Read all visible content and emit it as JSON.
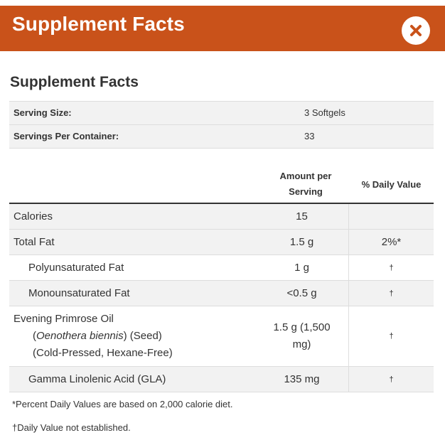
{
  "header": {
    "title": "Supplement Facts"
  },
  "section_title": "Supplement Facts",
  "serving": [
    {
      "label": "Serving Size:",
      "value": "3 Softgels"
    },
    {
      "label": "Servings Per Container:",
      "value": "33"
    }
  ],
  "columns": {
    "amount_line1": "Amount per",
    "amount_line2": "Serving",
    "daily_value": "% Daily Value"
  },
  "rows": [
    {
      "name": "Calories",
      "amount": "15",
      "dv": ""
    },
    {
      "name": "Total Fat",
      "amount": "1.5 g",
      "dv": "2%*"
    },
    {
      "name": "Polyunsaturated Fat",
      "amount": "1 g",
      "dv": "†"
    },
    {
      "name": "Monounsaturated Fat",
      "amount": "<0.5 g",
      "dv": "†"
    },
    {
      "name": "Evening Primrose Oil",
      "latin": "Oenothera biennis",
      "part": ") (Seed)",
      "open_paren": "(",
      "process": "(Cold-Pressed, Hexane-Free)",
      "amount_line1": "1.5 g (1,500",
      "amount_line2": "mg)",
      "dv": "†"
    },
    {
      "name": "Gamma Linolenic Acid (GLA)",
      "amount": "135 mg",
      "dv": "†"
    }
  ],
  "footnotes": [
    "*Percent Daily Values are based on 2,000 calorie diet.",
    "†Daily Value not established."
  ],
  "colors": {
    "header_bg": "#c9521a",
    "row_shade": "#f2f2f2"
  },
  "icons": {
    "close": "close-icon"
  }
}
